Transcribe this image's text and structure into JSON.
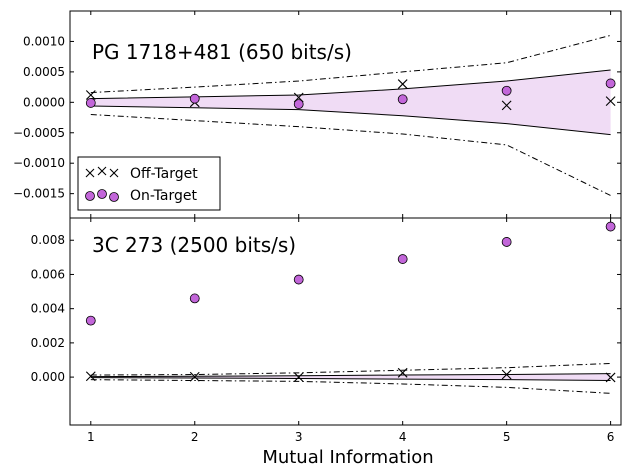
{
  "chart_data": [
    {
      "type": "scatter",
      "title": "PG 1718+481 (650 bits/s)",
      "xlabel": "Mutual Information",
      "ylabel": "",
      "xlim": [
        0.8,
        6.1
      ],
      "ylim": [
        -0.0019,
        0.0015
      ],
      "y_ticks": [
        -0.0015,
        -0.001,
        -0.0005,
        0.0,
        0.0005,
        0.001
      ],
      "y_tick_labels": [
        "−0.0015",
        "−0.0010",
        "−0.0005",
        "0.0000",
        "0.0005",
        "0.0010"
      ],
      "x_ticks": [
        1,
        2,
        3,
        4,
        5,
        6
      ],
      "legend": {
        "position": "bottom-left",
        "entries": [
          "Off-Target",
          "On-Target"
        ]
      },
      "colors": {
        "on_target": "#c266d9",
        "band": "#f0dcf5",
        "line": "#000000"
      },
      "series": [
        {
          "name": "Off-Target",
          "marker": "x",
          "x": [
            1,
            2,
            3,
            4,
            5,
            6
          ],
          "y": [
            0.00012,
            0.0,
            8e-05,
            0.0003,
            -5e-05,
            2e-05
          ]
        },
        {
          "name": "On-Target",
          "marker": "o",
          "x": [
            1,
            2,
            3,
            4,
            5,
            6
          ],
          "y": [
            -1e-05,
            6e-05,
            -3e-05,
            5e-05,
            0.00019,
            0.00031
          ]
        }
      ],
      "band": {
        "x": [
          1,
          2,
          3,
          4,
          5,
          6
        ],
        "upper": [
          6e-05,
          9e-05,
          0.00012,
          0.00022,
          0.00035,
          0.00053
        ],
        "lower": [
          -6e-05,
          -9e-05,
          -0.00012,
          -0.00022,
          -0.00035,
          -0.00053
        ]
      },
      "outer_limits": {
        "x": [
          1,
          2,
          3,
          4,
          5,
          6
        ],
        "upper": [
          0.00016,
          0.00025,
          0.00035,
          0.0005,
          0.00065,
          0.0011
        ],
        "lower": [
          -0.0002,
          -0.0003,
          -0.0004,
          -0.00052,
          -0.0007,
          -0.00153
        ]
      }
    },
    {
      "type": "scatter",
      "title": "3C 273 (2500 bits/s)",
      "xlabel": "Mutual Information",
      "ylabel": "",
      "xlim": [
        0.8,
        6.1
      ],
      "ylim": [
        -0.0028,
        0.0093
      ],
      "y_ticks": [
        0.0,
        0.002,
        0.004,
        0.006,
        0.008
      ],
      "y_tick_labels": [
        "0.000",
        "0.002",
        "0.004",
        "0.006",
        "0.008"
      ],
      "x_ticks": [
        1,
        2,
        3,
        4,
        5,
        6
      ],
      "x_tick_labels": [
        "1",
        "2",
        "3",
        "4",
        "5",
        "6"
      ],
      "colors": {
        "on_target": "#c266d9",
        "band": "#f0dcf5",
        "line": "#000000"
      },
      "series": [
        {
          "name": "Off-Target",
          "marker": "x",
          "x": [
            1,
            2,
            3,
            4,
            5,
            6
          ],
          "y": [
            5e-05,
            2e-05,
            0.0,
            0.00025,
            0.00015,
            -2e-05
          ]
        },
        {
          "name": "On-Target",
          "marker": "o",
          "x": [
            1,
            2,
            3,
            4,
            5,
            6
          ],
          "y": [
            0.0033,
            0.0046,
            0.0057,
            0.0069,
            0.0079,
            0.0088
          ]
        }
      ],
      "band": {
        "x": [
          1,
          2,
          3,
          4,
          5,
          6
        ],
        "upper": [
          3e-05,
          5e-05,
          8e-05,
          0.00012,
          0.00015,
          0.0002
        ],
        "lower": [
          -3e-05,
          -5e-05,
          -8e-05,
          -0.00012,
          -0.00015,
          -0.0002
        ]
      },
      "outer_limits": {
        "x": [
          1,
          2,
          3,
          4,
          5,
          6
        ],
        "upper": [
          0.00012,
          0.00015,
          0.00025,
          0.0004,
          0.00055,
          0.0008
        ],
        "lower": [
          -0.00015,
          -0.0002,
          -0.00025,
          -0.0004,
          -0.0006,
          -0.00095
        ]
      }
    }
  ]
}
